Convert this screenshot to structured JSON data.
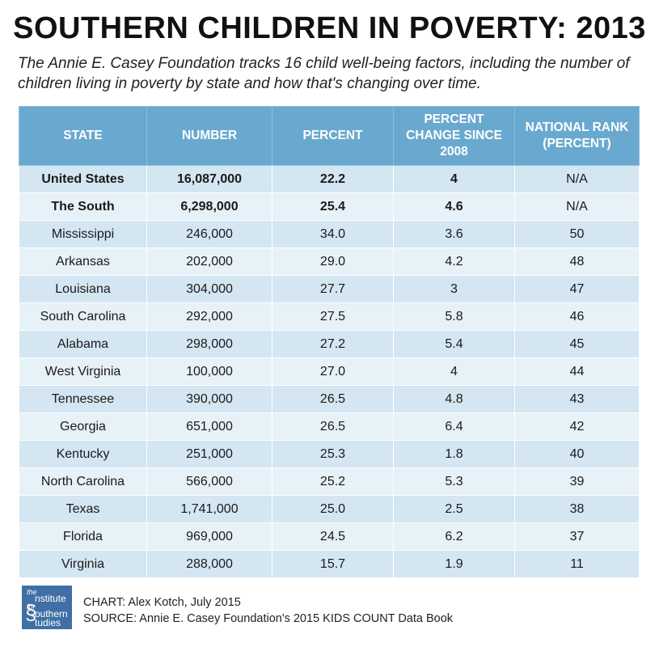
{
  "title": "SOUTHERN CHILDREN IN POVERTY: 2013",
  "subtitle": "The Annie E. Casey Foundation tracks 16 child well-being factors, including the number of children living in poverty by state and how that's changing over time.",
  "chart_data": {
    "type": "table",
    "columns": [
      "STATE",
      "NUMBER",
      "PERCENT",
      "PERCENT CHANGE SINCE 2008",
      "NATIONAL RANK (PERCENT)"
    ],
    "rows": [
      {
        "state": "United States",
        "number": "16,087,000",
        "percent": "22.2",
        "change": "4",
        "rank": "N/A",
        "bold": true
      },
      {
        "state": "The South",
        "number": "6,298,000",
        "percent": "25.4",
        "change": "4.6",
        "rank": "N/A",
        "bold": true
      },
      {
        "state": "Mississippi",
        "number": "246,000",
        "percent": "34.0",
        "change": "3.6",
        "rank": "50"
      },
      {
        "state": "Arkansas",
        "number": "202,000",
        "percent": "29.0",
        "change": "4.2",
        "rank": "48"
      },
      {
        "state": "Louisiana",
        "number": "304,000",
        "percent": "27.7",
        "change": "3",
        "rank": "47"
      },
      {
        "state": "South Carolina",
        "number": "292,000",
        "percent": "27.5",
        "change": "5.8",
        "rank": "46"
      },
      {
        "state": "Alabama",
        "number": "298,000",
        "percent": "27.2",
        "change": "5.4",
        "rank": "45"
      },
      {
        "state": "West Virginia",
        "number": "100,000",
        "percent": "27.0",
        "change": "4",
        "rank": "44"
      },
      {
        "state": "Tennessee",
        "number": "390,000",
        "percent": "26.5",
        "change": "4.8",
        "rank": "43"
      },
      {
        "state": "Georgia",
        "number": "651,000",
        "percent": "26.5",
        "change": "6.4",
        "rank": "42"
      },
      {
        "state": "Kentucky",
        "number": "251,000",
        "percent": "25.3",
        "change": "1.8",
        "rank": "40"
      },
      {
        "state": "North Carolina",
        "number": "566,000",
        "percent": "25.2",
        "change": "5.3",
        "rank": "39"
      },
      {
        "state": "Texas",
        "number": "1,741,000",
        "percent": "25.0",
        "change": "2.5",
        "rank": "38"
      },
      {
        "state": "Florida",
        "number": "969,000",
        "percent": "24.5",
        "change": "6.2",
        "rank": "37"
      },
      {
        "state": "Virginia",
        "number": "288,000",
        "percent": "15.7",
        "change": "1.9",
        "rank": "11"
      }
    ]
  },
  "footer": {
    "logo_line1": "the",
    "logo_line2": "nstitute",
    "logo_line3": "for",
    "logo_line4": "outhern",
    "logo_line5": "tudies",
    "chart_credit": "CHART: Alex Kotch, July 2015",
    "source": "SOURCE: Annie E. Casey Foundation's 2015 KIDS COUNT Data Book"
  },
  "colors": {
    "header_bg": "#6aa9cf",
    "row_dark": "#d3e6f2",
    "row_light": "#e7f1f8",
    "logo_bg": "#3f6fa4"
  }
}
